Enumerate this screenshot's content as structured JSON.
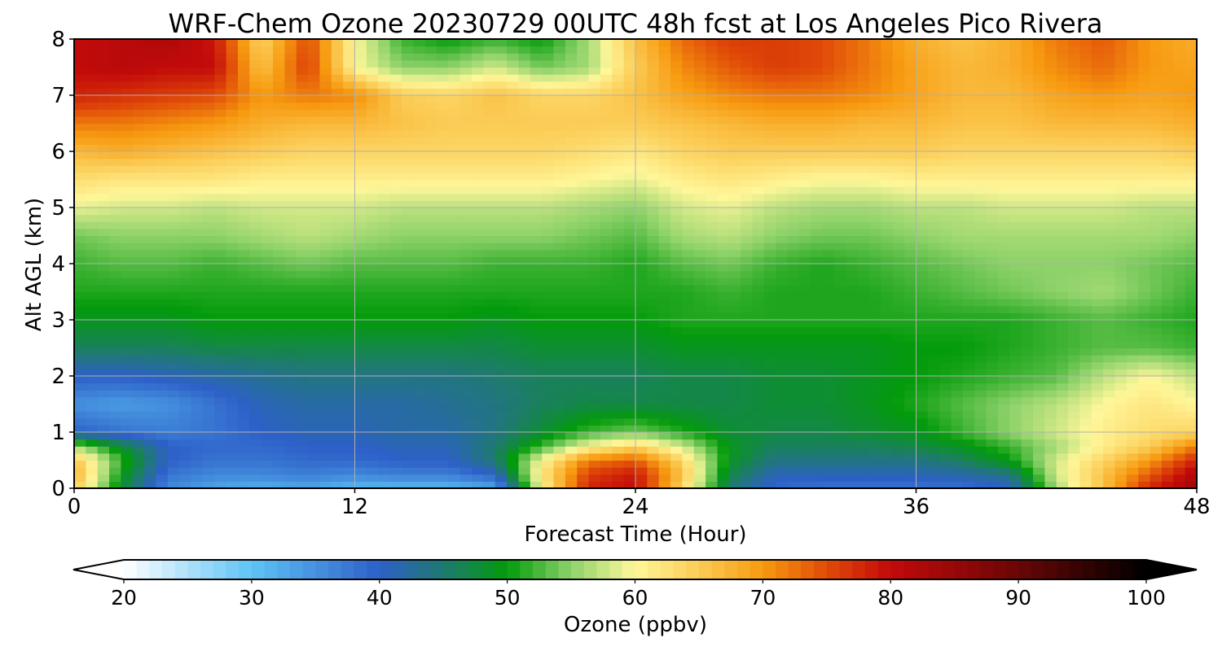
{
  "chart_data": {
    "type": "heatmap",
    "title": "WRF-Chem Ozone  20230729 00UTC 48h fcst at Los Angeles Pico Rivera",
    "xlabel": "Forecast Time (Hour)",
    "ylabel": "Alt AGL (km)",
    "xlim": [
      0,
      48
    ],
    "ylim": [
      0,
      8
    ],
    "x_ticks": [
      0,
      12,
      24,
      36,
      48
    ],
    "y_ticks": [
      0,
      1,
      2,
      3,
      4,
      5,
      6,
      7,
      8
    ],
    "grid": true,
    "colorbar": {
      "label": "Ozone  (ppbv)",
      "range": [
        20,
        100
      ],
      "ticks": [
        20,
        30,
        40,
        50,
        60,
        70,
        80,
        90,
        100
      ],
      "extend": "both",
      "colors": {
        "v20": "#ffffff",
        "v30": "#5ec3f5",
        "v40": "#2d60c8",
        "v45": "#1f7a70",
        "v50": "#039b0b",
        "v55": "#8ed26a",
        "v60": "#fff79a",
        "v65": "#fbcc55",
        "v70": "#f79a10",
        "v75": "#e04a08",
        "v80": "#c20a0a",
        "v90": "#6a0606",
        "v100": "#000000"
      }
    },
    "x": [
      0,
      2,
      4,
      6,
      8,
      10,
      12,
      14,
      16,
      18,
      20,
      22,
      24,
      26,
      28,
      30,
      32,
      34,
      36,
      38,
      40,
      42,
      44,
      46,
      48
    ],
    "y": [
      0,
      0.25,
      0.5,
      0.75,
      1,
      1.5,
      2,
      2.5,
      3,
      3.5,
      4,
      4.5,
      5,
      5.5,
      6,
      6.5,
      7,
      7.5,
      8
    ],
    "z_note": "ozone ppbv; rows = altitude (km) from 0 to 8, columns = forecast hour 0..48",
    "z": [
      [
        65,
        48,
        36,
        33,
        32,
        33,
        31,
        31,
        31,
        33,
        60,
        78,
        80,
        64,
        45,
        39,
        38,
        38,
        38,
        38,
        40,
        56,
        66,
        78,
        84
      ],
      [
        68,
        50,
        38,
        36,
        36,
        37,
        36,
        37,
        37,
        40,
        62,
        76,
        79,
        66,
        47,
        41,
        41,
        41,
        41,
        42,
        44,
        58,
        66,
        74,
        82
      ],
      [
        66,
        52,
        40,
        38,
        38,
        39,
        39,
        40,
        40,
        45,
        60,
        72,
        74,
        64,
        49,
        44,
        44,
        44,
        44,
        46,
        50,
        58,
        64,
        70,
        78
      ],
      [
        56,
        48,
        40,
        39,
        39,
        40,
        40,
        41,
        41,
        45,
        52,
        60,
        64,
        58,
        49,
        46,
        46,
        46,
        47,
        49,
        52,
        56,
        61,
        65,
        72
      ],
      [
        40,
        38,
        37,
        38,
        40,
        41,
        41,
        42,
        42,
        44,
        48,
        52,
        54,
        51,
        48,
        47,
        47,
        48,
        49,
        52,
        55,
        58,
        61,
        63,
        64
      ],
      [
        35,
        34,
        35,
        38,
        41,
        42,
        42,
        42,
        43,
        44,
        46,
        47,
        47,
        47,
        47,
        48,
        48,
        49,
        51,
        53,
        55,
        57,
        60,
        62,
        60
      ],
      [
        40,
        40,
        41,
        42,
        43,
        44,
        44,
        44,
        44,
        45,
        46,
        46,
        46,
        47,
        47,
        48,
        48,
        49,
        50,
        51,
        52,
        53,
        57,
        60,
        57
      ],
      [
        46,
        46,
        46,
        47,
        47,
        47,
        47,
        47,
        47,
        47,
        48,
        48,
        48,
        49,
        49,
        49,
        49,
        49,
        50,
        50,
        51,
        52,
        53,
        53,
        52
      ],
      [
        49,
        49,
        49,
        50,
        50,
        50,
        50,
        50,
        50,
        49,
        50,
        50,
        50,
        51,
        51,
        51,
        51,
        51,
        51,
        51,
        51,
        52,
        53,
        52,
        51
      ],
      [
        51,
        51,
        51,
        51,
        51,
        51,
        51,
        51,
        51,
        51,
        51,
        51,
        51,
        51,
        52,
        51,
        51,
        51,
        52,
        53,
        54,
        55,
        56,
        54,
        52
      ],
      [
        52,
        53,
        53,
        52,
        53,
        54,
        53,
        53,
        53,
        52,
        52,
        52,
        51,
        53,
        54,
        52,
        51,
        52,
        53,
        54,
        55,
        55,
        55,
        54,
        53
      ],
      [
        54,
        55,
        55,
        55,
        56,
        57,
        56,
        55,
        55,
        55,
        55,
        54,
        53,
        56,
        57,
        55,
        54,
        54,
        55,
        56,
        56,
        56,
        56,
        56,
        55
      ],
      [
        59,
        58,
        58,
        57,
        58,
        58,
        58,
        57,
        57,
        57,
        57,
        56,
        55,
        58,
        59,
        57,
        56,
        56,
        57,
        57,
        58,
        58,
        58,
        57,
        57
      ],
      [
        63,
        62,
        62,
        62,
        61,
        61,
        61,
        61,
        61,
        61,
        61,
        60,
        59,
        61,
        62,
        61,
        60,
        60,
        61,
        61,
        61,
        61,
        61,
        61,
        61
      ],
      [
        67,
        68,
        67,
        66,
        65,
        64,
        64,
        64,
        64,
        64,
        64,
        63,
        62,
        64,
        65,
        65,
        65,
        65,
        65,
        64,
        64,
        64,
        64,
        64,
        65
      ],
      [
        72,
        72,
        71,
        70,
        68,
        67,
        67,
        66,
        65,
        65,
        65,
        65,
        65,
        66,
        67,
        68,
        68,
        67,
        67,
        66,
        66,
        67,
        67,
        67,
        68
      ],
      [
        78,
        77,
        76,
        75,
        70,
        72,
        71,
        65,
        64,
        66,
        64,
        64,
        66,
        69,
        71,
        72,
        72,
        71,
        69,
        67,
        67,
        69,
        70,
        69,
        70
      ],
      [
        80,
        81,
        80,
        80,
        66,
        76,
        60,
        55,
        55,
        58,
        54,
        56,
        65,
        71,
        74,
        76,
        75,
        72,
        69,
        67,
        68,
        71,
        73,
        70,
        69
      ],
      [
        80,
        81,
        82,
        79,
        64,
        75,
        60,
        52,
        50,
        52,
        50,
        56,
        66,
        73,
        76,
        76,
        75,
        72,
        68,
        66,
        68,
        72,
        74,
        70,
        68
      ]
    ]
  }
}
